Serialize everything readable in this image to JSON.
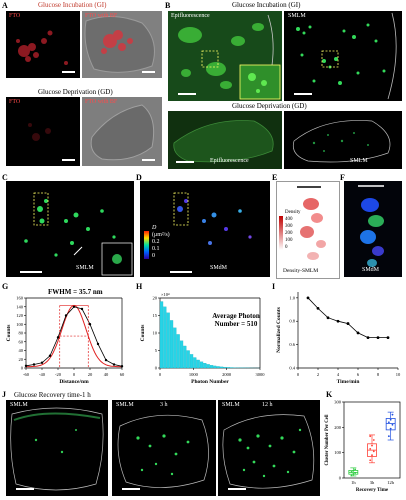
{
  "panel_a": {
    "label": "A",
    "title_gi": "Glucose Incubation (GI)",
    "title_gd": "Glucose Deprivation (GD)",
    "fto": "FTO",
    "fto_bf": "FTO with BF"
  },
  "panel_b": {
    "label": "B",
    "title_gi": "Glucose Incubation (GI)",
    "title_gd": "Glucose Deprivation (GD)",
    "epi": "Epifluorescence",
    "smlm": "SMLM"
  },
  "panel_c": {
    "label": "C",
    "tag": "SMLM"
  },
  "panel_d": {
    "label": "D",
    "tag": "SMdM",
    "colorbar_title": "D",
    "colorbar_unit": "(μm²/s)",
    "colorbar_ticks": [
      "0.2",
      "0.1",
      "0"
    ]
  },
  "panel_e": {
    "label": "E",
    "tag": "Density-SMLM",
    "density_title": "Density",
    "density_ticks": [
      "400",
      "300",
      "200",
      "100",
      "0"
    ]
  },
  "panel_f": {
    "label": "F",
    "tag": "SMdM"
  },
  "panel_g": {
    "label": "G",
    "annotation": "FWHM = 35.7 nm"
  },
  "panel_h": {
    "label": "H",
    "annotation_line1": "Average Photon",
    "annotation_line2": "Number = 510"
  },
  "panel_i": {
    "label": "I"
  },
  "panel_j": {
    "label": "J",
    "title": "Glucose Recovery time-1 h",
    "tag1": "SMLM",
    "tag2": "SMLM",
    "tag3": "SMLM",
    "t2": "3 h",
    "t3": "12 h"
  },
  "panel_k": {
    "label": "K"
  },
  "chart_data": [
    {
      "id": "G",
      "type": "line",
      "xlabel": "Distance/nm",
      "ylabel": "Counts",
      "xlim": [
        -60,
        60
      ],
      "ylim": [
        0,
        160
      ],
      "xticks": [
        "-60",
        "-40",
        "-20",
        "0",
        "20",
        "40",
        "60"
      ],
      "yticks": [
        "0",
        "20",
        "40",
        "60",
        "80",
        "100",
        "120",
        "140",
        "160"
      ],
      "series": [
        {
          "x": [
            -60,
            -50,
            -40,
            -30,
            -20,
            -10,
            0,
            10,
            20,
            30,
            40,
            50,
            60
          ],
          "values": [
            5,
            8,
            12,
            28,
            70,
            120,
            140,
            135,
            100,
            55,
            18,
            8,
            4
          ]
        }
      ],
      "fit": {
        "center": 0,
        "fwhm": 35.7,
        "amplitude": 140,
        "baseline": 3
      }
    },
    {
      "id": "H",
      "type": "bar",
      "xlabel": "Photon Number",
      "ylabel": "Counts",
      "y_multiplier": "×10⁴",
      "xlim": [
        0,
        3000
      ],
      "ylim": [
        0,
        20
      ],
      "xticks": [
        "0",
        "1000",
        "2000",
        "3000"
      ],
      "yticks": [
        "0",
        "5",
        "10",
        "15",
        "20"
      ],
      "bin_width": 100,
      "values": [
        19,
        17.5,
        15.8,
        13.6,
        11.5,
        9.6,
        7.8,
        6.3,
        5.0,
        3.9,
        3.0,
        2.3,
        1.8,
        1.4,
        1.05,
        0.8,
        0.6,
        0.45,
        0.34,
        0.26,
        0.2,
        0.15,
        0.11,
        0.08,
        0.06,
        0.04,
        0.03,
        0.02,
        0.01,
        0.01
      ]
    },
    {
      "id": "I",
      "type": "line",
      "xlabel": "Time/min",
      "ylabel": "Normalized Counts",
      "xlim": [
        0,
        10
      ],
      "ylim": [
        0.4,
        1.05
      ],
      "xticks": [
        "0",
        "2",
        "4",
        "6",
        "8",
        "10"
      ],
      "yticks": [
        "0.4",
        "0.6",
        "0.8",
        "1.0"
      ],
      "series": [
        {
          "x": [
            1,
            2,
            3,
            4,
            5,
            6,
            7,
            8,
            9
          ],
          "values": [
            1.0,
            0.91,
            0.83,
            0.8,
            0.78,
            0.7,
            0.66,
            0.66,
            0.66
          ]
        }
      ]
    },
    {
      "id": "K",
      "type": "box",
      "xlabel": "Recovery Time",
      "ylabel": "Cluster Number Per Cell",
      "ylim": [
        0,
        300
      ],
      "yticks": [
        "0",
        "100",
        "200",
        "300"
      ],
      "categories": [
        "1h",
        "3h",
        "12h"
      ],
      "colors": [
        "#2ecc40",
        "#ff4136",
        "#1f4fe0"
      ],
      "boxes": [
        {
          "min": 8,
          "q1": 15,
          "median": 22,
          "q3": 30,
          "max": 40,
          "points": [
            10,
            16,
            20,
            24,
            28,
            34
          ]
        },
        {
          "min": 60,
          "q1": 85,
          "median": 110,
          "q3": 135,
          "max": 170,
          "points": [
            70,
            90,
            105,
            115,
            128,
            150,
            165
          ]
        },
        {
          "min": 150,
          "q1": 190,
          "median": 215,
          "q3": 235,
          "max": 260,
          "points": [
            165,
            195,
            210,
            220,
            230,
            250
          ]
        }
      ]
    }
  ]
}
